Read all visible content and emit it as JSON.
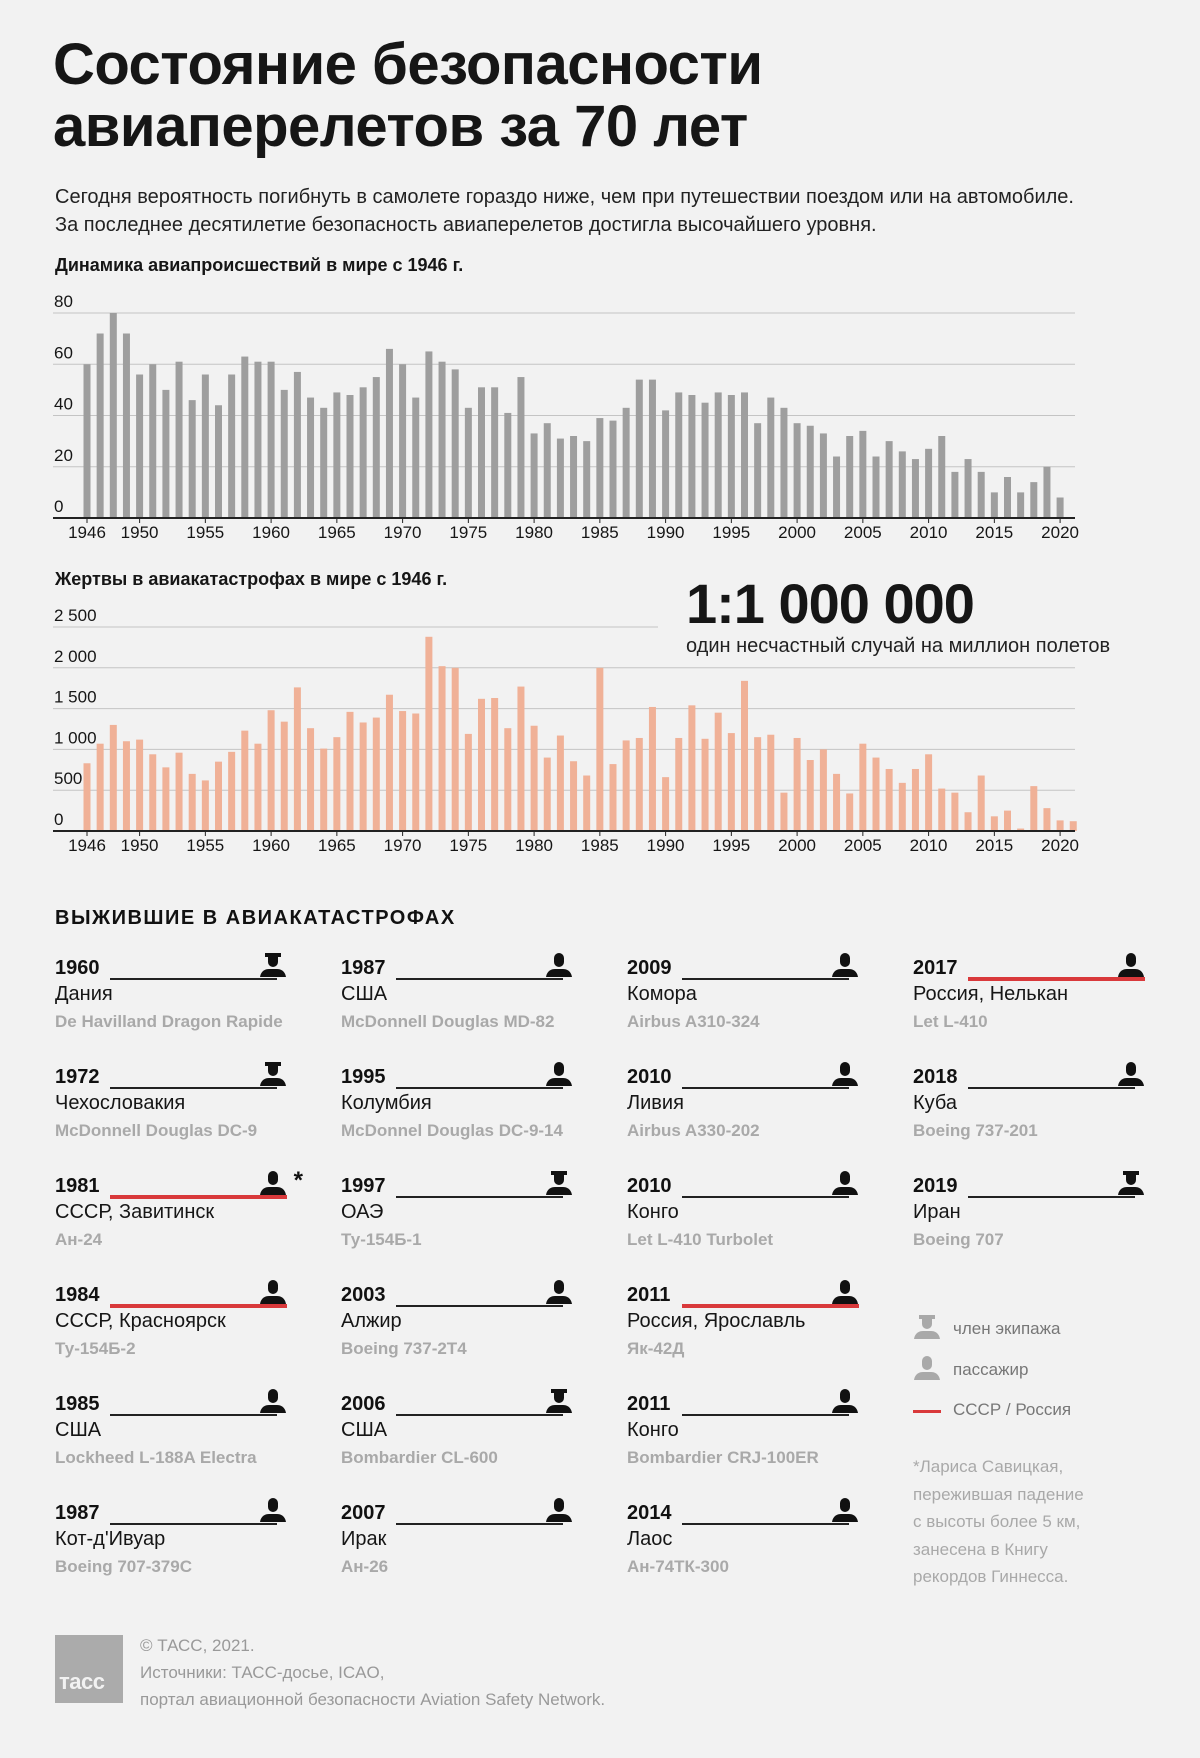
{
  "header": {
    "title_line1": "Состояние безопасности",
    "title_line2": "авиаперелетов за 70 лет",
    "intro_line1": "Сегодня вероятность погибнуть в самолете гораздо ниже, чем при путешествии поездом или на автомобиле.",
    "intro_line2": "За последнее десятилетие безопасность авиаперелетов достигла высочайшего уровня."
  },
  "highlight": {
    "value": "1:1 000 000",
    "caption": "один несчастный случай на миллион полетов"
  },
  "colors": {
    "background": "#f2f2f2",
    "accidents_bar": "#9e9e9e",
    "fatalities_bar": "#f0b197",
    "ussr_russia": "#d9393b",
    "model_text": "#a9a9a9"
  },
  "chart_data": [
    {
      "type": "bar",
      "title": "Динамика авиапроисшествий в мире  с 1946 г.",
      "xlabel": "",
      "ylabel": "",
      "ylim": [
        0,
        80
      ],
      "yticks": [
        "0",
        "20",
        "40",
        "60",
        "80"
      ],
      "ytick_values": [
        0,
        20,
        40,
        60,
        80
      ],
      "xticks": [
        "1946",
        "1950",
        "1955",
        "1960",
        "1965",
        "1970",
        "1975",
        "1980",
        "1985",
        "1990",
        "1995",
        "2000",
        "2005",
        "2010",
        "2015",
        "2020"
      ],
      "grid": true,
      "x_start": 1946,
      "values": [
        60,
        72,
        80,
        72,
        56,
        60,
        50,
        61,
        46,
        56,
        44,
        56,
        63,
        61,
        61,
        50,
        57,
        47,
        43,
        49,
        48,
        51,
        55,
        66,
        60,
        47,
        65,
        61,
        58,
        43,
        51,
        51,
        41,
        55,
        33,
        37,
        31,
        32,
        30,
        39,
        38,
        43,
        54,
        54,
        42,
        49,
        48,
        45,
        49,
        48,
        49,
        37,
        47,
        43,
        37,
        36,
        33,
        24,
        32,
        34,
        24,
        30,
        26,
        23,
        27,
        32,
        18,
        23,
        18,
        10,
        16,
        10,
        14,
        20,
        8
      ]
    },
    {
      "type": "bar",
      "title": "Жертвы в авиакатастрофах в мире с 1946 г.",
      "xlabel": "",
      "ylabel": "",
      "ylim": [
        0,
        2500
      ],
      "yticks": [
        "0",
        "500",
        "1 000",
        "1 500",
        "2 000",
        "2 500"
      ],
      "ytick_values": [
        0,
        500,
        1000,
        1500,
        2000,
        2500
      ],
      "xticks": [
        "1946",
        "1950",
        "1955",
        "1960",
        "1965",
        "1970",
        "1975",
        "1980",
        "1985",
        "1990",
        "1995",
        "2000",
        "2005",
        "2010",
        "2015",
        "2020"
      ],
      "grid": true,
      "x_start": 1946,
      "values": [
        830,
        1070,
        1300,
        1100,
        1120,
        940,
        780,
        960,
        700,
        620,
        850,
        970,
        1230,
        1070,
        1480,
        1340,
        1760,
        1260,
        1010,
        1150,
        1460,
        1330,
        1390,
        1670,
        1470,
        1440,
        2380,
        2020,
        2000,
        1190,
        1620,
        1630,
        1260,
        1770,
        1290,
        900,
        1170,
        855,
        680,
        2000,
        820,
        1110,
        1140,
        1520,
        660,
        1140,
        1540,
        1130,
        1450,
        1200,
        1840,
        1150,
        1180,
        470,
        1140,
        870,
        1000,
        700,
        460,
        1070,
        900,
        760,
        590,
        760,
        940,
        520,
        470,
        230,
        680,
        180,
        250,
        30,
        550,
        280,
        130,
        120
      ]
    }
  ],
  "survivors": {
    "heading": "ВЫЖИВШИЕ В АВИАКАТАСТРОФАХ",
    "columns": [
      [
        {
          "year": "1960",
          "place": "Дания",
          "aircraft": "De Havilland Dragon Rapide",
          "role": "crew",
          "ussr_russia": false
        },
        {
          "year": "1972",
          "place": "Чехословакия",
          "aircraft": "McDonnell Douglas DC-9",
          "role": "crew",
          "ussr_russia": false
        },
        {
          "year": "1981",
          "place": "СССР, Завитинск",
          "aircraft": "Ан-24",
          "role": "passenger",
          "ussr_russia": true,
          "mark": "*"
        },
        {
          "year": "1984",
          "place": "СССР, Красноярск",
          "aircraft": "Ту-154Б-2",
          "role": "passenger",
          "ussr_russia": true
        },
        {
          "year": "1985",
          "place": "США",
          "aircraft": "Lockheed L-188A Electra",
          "role": "passenger",
          "ussr_russia": false
        },
        {
          "year": "1987",
          "place": "Кот-д'Ивуар",
          "aircraft": "Boeing 707-379C",
          "role": "passenger",
          "ussr_russia": false
        }
      ],
      [
        {
          "year": "1987",
          "place": "США",
          "aircraft": "McDonnell Douglas MD-82",
          "role": "passenger",
          "ussr_russia": false
        },
        {
          "year": "1995",
          "place": "Колумбия",
          "aircraft": "McDonnel Douglas DC-9-14",
          "role": "passenger",
          "ussr_russia": false
        },
        {
          "year": "1997",
          "place": "ОАЭ",
          "aircraft": "Ту-154Б-1",
          "role": "crew",
          "ussr_russia": false
        },
        {
          "year": "2003",
          "place": "Алжир",
          "aircraft": "Boeing 737-2T4",
          "role": "passenger",
          "ussr_russia": false
        },
        {
          "year": "2006",
          "place": "США",
          "aircraft": "Bombardier CL-600",
          "role": "crew",
          "ussr_russia": false
        },
        {
          "year": "2007",
          "place": "Ирак",
          "aircraft": "Ан-26",
          "role": "passenger",
          "ussr_russia": false
        }
      ],
      [
        {
          "year": "2009",
          "place": "Комора",
          "aircraft": "Airbus A310-324",
          "role": "passenger",
          "ussr_russia": false
        },
        {
          "year": "2010",
          "place": "Ливия",
          "aircraft": "Airbus A330-202",
          "role": "passenger",
          "ussr_russia": false
        },
        {
          "year": "2010",
          "place": "Конго",
          "aircraft": "Let L-410 Turbolet",
          "role": "passenger",
          "ussr_russia": false
        },
        {
          "year": "2011",
          "place": "Россия, Ярославль",
          "aircraft": "Як-42Д",
          "role": "passenger",
          "ussr_russia": true
        },
        {
          "year": "2011",
          "place": "Конго",
          "aircraft": "Bombardier CRJ-100ER",
          "role": "passenger",
          "ussr_russia": false
        },
        {
          "year": "2014",
          "place": "Лаос",
          "aircraft": "Ан-74ТК-300",
          "role": "passenger",
          "ussr_russia": false
        }
      ],
      [
        {
          "year": "2017",
          "place": "Россия, Нелькан",
          "aircraft": "Let L-410",
          "role": "passenger",
          "ussr_russia": true
        },
        {
          "year": "2018",
          "place": "Куба",
          "aircraft": "Boeing 737-201",
          "role": "passenger",
          "ussr_russia": false
        },
        {
          "year": "2019",
          "place": "Иран",
          "aircraft": "Boeing 707",
          "role": "crew",
          "ussr_russia": false
        }
      ]
    ],
    "legend": {
      "crew": "член экипажа",
      "passenger": "пассажир",
      "ussr_russia": "СССР / Россия"
    },
    "footnote": [
      "*Лариса Савицкая,",
      "пережившая падение",
      "с высоты более 5 км,",
      "занесена в Книгу",
      "рекордов Гиннесса."
    ]
  },
  "footer": {
    "logo": "тасс",
    "copyright": "© ТАСС, 2021.",
    "sources_line1": "Источники: ТАСС-досье, ICAO,",
    "sources_line2": "портал авиационной безопасности Aviation Safety Network."
  }
}
